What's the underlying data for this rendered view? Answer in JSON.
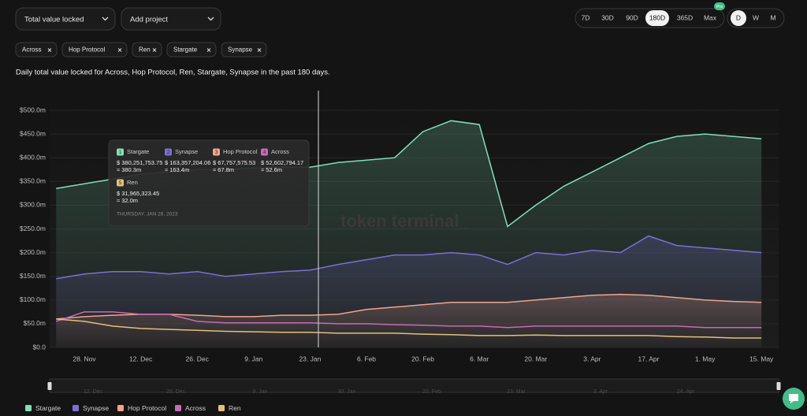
{
  "controls": {
    "metric": "Total value locked",
    "add_project": "Add project",
    "ranges": [
      "7D",
      "30D",
      "90D",
      "180D",
      "365D",
      "Max"
    ],
    "active_range": "180D",
    "badge": "Pro",
    "granularity": [
      "D",
      "W",
      "M"
    ],
    "active_granularity": "D",
    "filters": [
      "Across",
      "Hop Protocol",
      "Ren",
      "Stargate",
      "Synapse"
    ]
  },
  "chart_data": {
    "type": "line",
    "subtitle": "Daily total value locked for Across, Hop Protocol, Ren, Stargate, Synapse in the past 180 days.",
    "categories": [
      null,
      "28. Nov",
      null,
      "12. Dec",
      null,
      "26. Dec",
      null,
      "9. Jan",
      null,
      "23. Jan",
      null,
      "6. Feb",
      null,
      "20. Feb",
      null,
      "6. Mar",
      null,
      "20. Mar",
      null,
      "3. Apr",
      null,
      "17. Apr",
      null,
      "1. May",
      null,
      "15. May"
    ],
    "series": [
      {
        "name": "Stargate",
        "color": "#7ee0b8",
        "area": true,
        "values": [
          335,
          345,
          355,
          365,
          370,
          375,
          375,
          378,
          380,
          380,
          390,
          395,
          400,
          455,
          478,
          470,
          255,
          300,
          340,
          370,
          400,
          430,
          445,
          450,
          445,
          440
        ]
      },
      {
        "name": "Synapse",
        "color": "#7b6fd6",
        "area": true,
        "values": [
          145,
          155,
          160,
          160,
          155,
          160,
          150,
          155,
          160,
          163,
          175,
          185,
          195,
          195,
          200,
          195,
          175,
          200,
          195,
          205,
          200,
          235,
          215,
          210,
          205,
          200
        ]
      },
      {
        "name": "Hop Protocol",
        "color": "#f0a58a",
        "area": true,
        "values": [
          60,
          65,
          68,
          70,
          70,
          68,
          65,
          65,
          68,
          68,
          70,
          80,
          85,
          90,
          95,
          95,
          95,
          100,
          105,
          110,
          112,
          110,
          105,
          100,
          97,
          95
        ]
      },
      {
        "name": "Across",
        "color": "#c76bb6",
        "area": false,
        "values": [
          55,
          75,
          75,
          70,
          70,
          55,
          52,
          52,
          52,
          52,
          50,
          50,
          48,
          47,
          45,
          45,
          42,
          45,
          45,
          45,
          45,
          45,
          45,
          42,
          42,
          42
        ]
      },
      {
        "name": "Ren",
        "color": "#e3c07a",
        "area": false,
        "values": [
          60,
          55,
          45,
          40,
          38,
          36,
          34,
          33,
          32,
          32,
          30,
          30,
          30,
          28,
          27,
          25,
          25,
          26,
          25,
          25,
          25,
          25,
          23,
          22,
          20,
          20
        ]
      }
    ],
    "ylim": [
      0,
      500
    ],
    "yticks": [
      {
        "value": 0,
        "label": "$0.0"
      },
      {
        "value": 50,
        "label": "$50.0m"
      },
      {
        "value": 100,
        "label": "$100.0m"
      },
      {
        "value": 150,
        "label": "$150.0m"
      },
      {
        "value": 200,
        "label": "$200.0m"
      },
      {
        "value": 250,
        "label": "$250.0m"
      },
      {
        "value": 300,
        "label": "$300.0m"
      },
      {
        "value": 350,
        "label": "$350.0m"
      },
      {
        "value": 400,
        "label": "$400.0m"
      },
      {
        "value": 450,
        "label": "$450.0m"
      },
      {
        "value": 500,
        "label": "$500.0m"
      }
    ],
    "grid": true
  },
  "tooltip": {
    "items": [
      {
        "rank": 1,
        "name": "Stargate",
        "value": "$ 380,251,753.75",
        "approx": "≈ 380.3m"
      },
      {
        "rank": 2,
        "name": "Synapse",
        "value": "$ 163,357,204.06",
        "approx": "≈ 163.4m"
      },
      {
        "rank": 3,
        "name": "Hop Protocol",
        "value": "$ 67,757,575.53",
        "approx": "≈ 67.8m"
      },
      {
        "rank": 4,
        "name": "Across",
        "value": "$ 52,602,794.17",
        "approx": "≈ 52.6m"
      },
      {
        "rank": 5,
        "name": "Ren",
        "value": "$ 31,965,323.45",
        "approx": "≈ 32.0m"
      }
    ],
    "date": "THURSDAY, JAN 26, 2023"
  },
  "watermark": "token terminal_",
  "navigator": {
    "labels": [
      "12. Dec",
      "26. Dec",
      "9. Jan",
      "30. Jan",
      "20. Feb",
      "13. Mar",
      "3. Apr",
      "24. Apr"
    ]
  }
}
